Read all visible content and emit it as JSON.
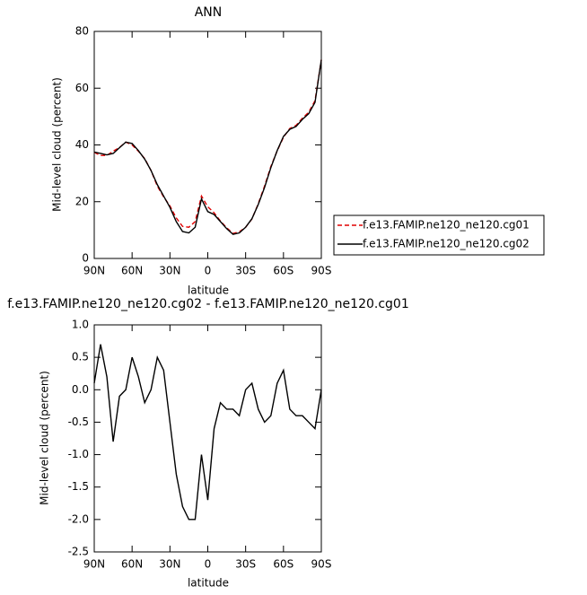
{
  "chart_data": [
    {
      "type": "line",
      "title": "ANN",
      "xlabel": "latitude",
      "ylabel": "Mid-level cloud (percent)",
      "x": [
        90,
        85,
        80,
        75,
        70,
        65,
        60,
        55,
        50,
        45,
        40,
        35,
        30,
        25,
        20,
        15,
        10,
        5,
        0,
        -5,
        -10,
        -15,
        -20,
        -25,
        -30,
        -35,
        -40,
        -45,
        -50,
        -55,
        -60,
        -65,
        -70,
        -75,
        -80,
        -85,
        -90
      ],
      "series": [
        {
          "name": "f.e13.FAMIP.ne120_ne120.cg01",
          "color": "#e00000",
          "line_style": "dashed",
          "values": [
            37.4,
            36.3,
            36.3,
            37.8,
            39.1,
            41,
            40,
            37.8,
            35.2,
            31,
            25.5,
            21.7,
            18.5,
            14.3,
            11.3,
            11,
            13,
            22,
            18.2,
            16.1,
            13.2,
            10.8,
            8.8,
            9.4,
            11,
            13.9,
            19.3,
            25.5,
            32.4,
            37.9,
            42.7,
            45.8,
            46.9,
            49.4,
            51.5,
            55.6,
            70
          ]
        },
        {
          "name": "f.e13.FAMIP.ne120_ne120.cg02",
          "color": "#000000",
          "line_style": "solid",
          "values": [
            37.5,
            37,
            36.5,
            37,
            39,
            41,
            40.5,
            38,
            35,
            31,
            26,
            22,
            18,
            13,
            9.5,
            9,
            11,
            21,
            16.5,
            15.5,
            13,
            10.5,
            8.5,
            9,
            11,
            14,
            19,
            25,
            32,
            38,
            43,
            45.5,
            46.5,
            49,
            51,
            55,
            70
          ]
        }
      ],
      "xlim": [
        90,
        -90
      ],
      "xticks": [
        {
          "value": 90,
          "label": "90N"
        },
        {
          "value": 60,
          "label": "60N"
        },
        {
          "value": 30,
          "label": "30N"
        },
        0,
        {
          "value": -30,
          "label": "30S"
        },
        {
          "value": -60,
          "label": "60S"
        },
        {
          "value": -90,
          "label": "90S"
        }
      ],
      "ylim": [
        0,
        80
      ],
      "yticks": [
        0,
        20,
        40,
        60,
        80
      ],
      "legend": "right"
    },
    {
      "type": "line",
      "title": "f.e13.FAMIP.ne120_ne120.cg02 - f.e13.FAMIP.ne120_ne120.cg01",
      "xlabel": "latitude",
      "ylabel": "Mid-level cloud (percent)",
      "x": [
        90,
        85,
        80,
        75,
        70,
        65,
        60,
        55,
        50,
        45,
        40,
        35,
        30,
        25,
        20,
        15,
        10,
        5,
        0,
        -5,
        -10,
        -15,
        -20,
        -25,
        -30,
        -35,
        -40,
        -45,
        -50,
        -55,
        -60,
        -65,
        -70,
        -75,
        -80,
        -85,
        -90
      ],
      "color": "#000000",
      "values": [
        0.1,
        0.7,
        0.2,
        -0.8,
        -0.1,
        0.0,
        0.5,
        0.2,
        -0.2,
        0.0,
        0.5,
        0.3,
        -0.5,
        -1.3,
        -1.8,
        -2.0,
        -2.0,
        -1.0,
        -1.7,
        -0.6,
        -0.2,
        -0.3,
        -0.3,
        -0.4,
        0.0,
        0.1,
        -0.3,
        -0.5,
        -0.4,
        0.1,
        0.3,
        -0.3,
        -0.4,
        -0.4,
        -0.5,
        -0.6,
        0.0
      ],
      "xlim": [
        90,
        -90
      ],
      "xticks": [
        {
          "value": 90,
          "label": "90N"
        },
        {
          "value": 60,
          "label": "60N"
        },
        {
          "value": 30,
          "label": "30N"
        },
        0,
        {
          "value": -30,
          "label": "30S"
        },
        {
          "value": -60,
          "label": "60S"
        },
        {
          "value": -90,
          "label": "90S"
        }
      ],
      "ylim": [
        -2.5,
        1.0
      ],
      "yticks": [
        -2.5,
        {
          "value": -2,
          "label": "-2.0"
        },
        -1.5,
        {
          "value": -1,
          "label": "-1.0"
        },
        -0.5,
        {
          "value": 0,
          "label": "0.0"
        },
        0.5,
        {
          "value": 1,
          "label": "1.0"
        }
      ]
    }
  ]
}
